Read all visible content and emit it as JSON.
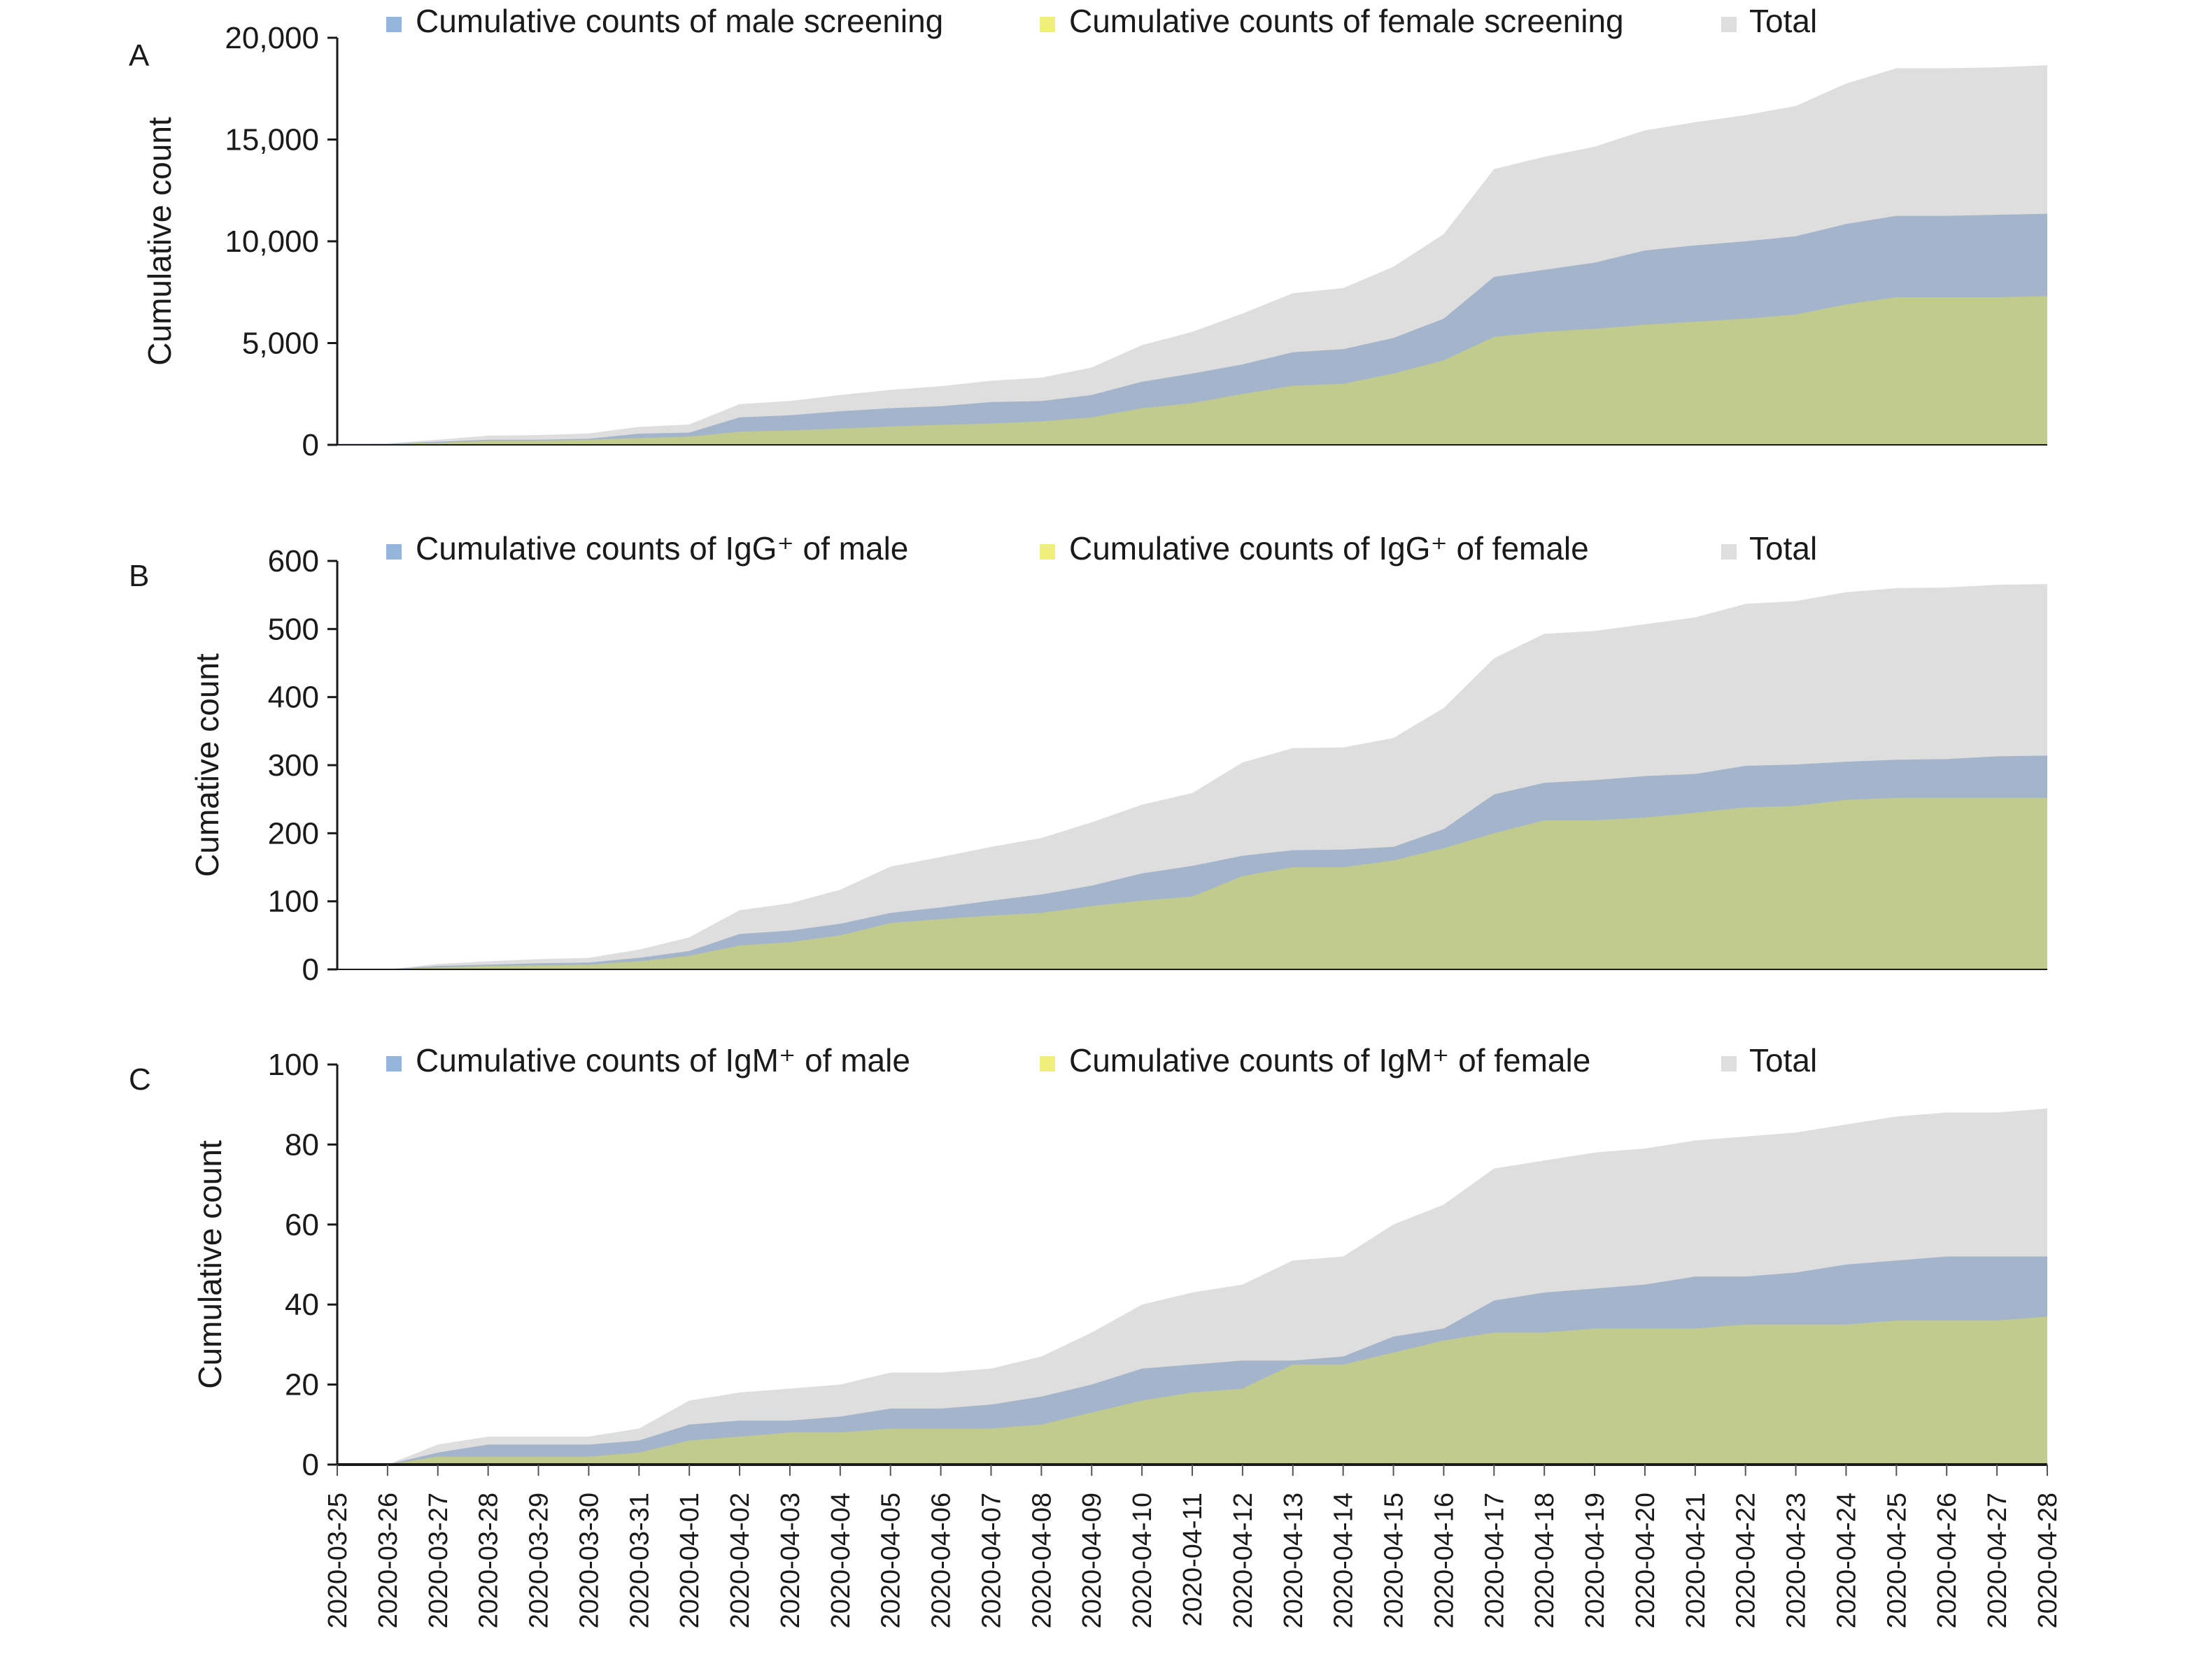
{
  "chart_data": [
    {
      "panel": "A",
      "type": "area",
      "title": "",
      "xlabel": "",
      "ylabel": "Cumulative count",
      "ylim": [
        0,
        20000
      ],
      "yticks": [
        "0",
        "5,000",
        "10,000",
        "15,000",
        "20,000"
      ],
      "ytick_values": [
        0,
        5000,
        10000,
        15000,
        20000
      ],
      "legend_position": "top",
      "grid": false,
      "series": [
        {
          "name": "Total",
          "color": "#dedede",
          "values": [
            50,
            70,
            250,
            450,
            480,
            560,
            880,
            1000,
            2000,
            2150,
            2450,
            2700,
            2880,
            3150,
            3300,
            3800,
            4900,
            5550,
            6450,
            7450,
            7700,
            8750,
            10350,
            13550,
            14150,
            14650,
            15450,
            15850,
            16200,
            16650,
            17750,
            18500,
            18500,
            18550,
            18650
          ]
        },
        {
          "name": "Cumulative counts of male screening",
          "color": "#a4b5cb",
          "legend_color": "#95b6dc",
          "values": [
            50,
            50,
            150,
            250,
            250,
            300,
            550,
            600,
            1350,
            1450,
            1650,
            1800,
            1900,
            2100,
            2150,
            2450,
            3100,
            3500,
            3950,
            4550,
            4700,
            5250,
            6200,
            8250,
            8600,
            8950,
            9550,
            9800,
            10000,
            10250,
            10850,
            11250,
            11250,
            11300,
            11350
          ]
        },
        {
          "name": "Cumulative counts of female screening",
          "color": "#c2cb8e",
          "legend_color": "#eef07a",
          "values": [
            0,
            20,
            100,
            200,
            200,
            250,
            330,
            400,
            650,
            700,
            800,
            900,
            980,
            1050,
            1150,
            1350,
            1800,
            2050,
            2500,
            2900,
            3000,
            3500,
            4150,
            5300,
            5550,
            5700,
            5900,
            6050,
            6200,
            6400,
            6900,
            7250,
            7250,
            7250,
            7300
          ]
        }
      ]
    },
    {
      "panel": "B",
      "type": "area",
      "title": "",
      "xlabel": "",
      "ylabel": "Cumative count",
      "ylim": [
        0,
        600
      ],
      "yticks": [
        "0",
        "100",
        "200",
        "300",
        "400",
        "500",
        "600"
      ],
      "ytick_values": [
        0,
        100,
        200,
        300,
        400,
        500,
        600
      ],
      "legend_position": "top",
      "grid": false,
      "series": [
        {
          "name": "Total",
          "color": "#dedede",
          "values": [
            0,
            0,
            8,
            12,
            15,
            17,
            29,
            47,
            87,
            97,
            117,
            151,
            165,
            180,
            193,
            216,
            242,
            259,
            304,
            325,
            326,
            340,
            384,
            457,
            493,
            497,
            507,
            517,
            537,
            541,
            554,
            560,
            561,
            565,
            566
          ]
        },
        {
          "name": "Cumulative counts of IgG⁺ of male",
          "color": "#a4b5cb",
          "legend_color": "#95b6dc",
          "values": [
            0,
            0,
            5,
            7,
            9,
            10,
            17,
            27,
            52,
            57,
            67,
            83,
            91,
            101,
            110,
            123,
            141,
            152,
            167,
            175,
            176,
            180,
            206,
            257,
            274,
            278,
            284,
            287,
            299,
            301,
            305,
            308,
            309,
            313,
            314
          ]
        },
        {
          "name": "Cumulative counts of IgG⁺ of female",
          "color": "#c2cb8e",
          "legend_color": "#eef07a",
          "values": [
            0,
            0,
            3,
            5,
            6,
            7,
            12,
            20,
            35,
            40,
            50,
            68,
            74,
            79,
            83,
            93,
            101,
            107,
            137,
            150,
            150,
            160,
            178,
            200,
            219,
            219,
            223,
            230,
            238,
            240,
            249,
            252,
            252,
            252,
            252
          ]
        }
      ]
    },
    {
      "panel": "C",
      "type": "area",
      "title": "",
      "xlabel": "",
      "ylabel": "Cumulative count",
      "ylim": [
        0,
        100
      ],
      "yticks": [
        "0",
        "20",
        "40",
        "60",
        "80",
        "100"
      ],
      "ytick_values": [
        0,
        20,
        40,
        60,
        80,
        100
      ],
      "legend_position": "top",
      "grid": false,
      "series": [
        {
          "name": "Total",
          "color": "#dedede",
          "values": [
            0,
            0,
            5,
            7,
            7,
            7,
            9,
            16,
            18,
            19,
            20,
            23,
            23,
            24,
            27,
            33,
            40,
            43,
            45,
            51,
            52,
            60,
            65,
            74,
            76,
            78,
            79,
            81,
            82,
            83,
            85,
            87,
            88,
            88,
            89
          ]
        },
        {
          "name": "Cumulative counts of IgM⁺ of male",
          "color": "#a4b5cb",
          "legend_color": "#95b6dc",
          "values": [
            0,
            0,
            3,
            5,
            5,
            5,
            6,
            10,
            11,
            11,
            12,
            14,
            14,
            15,
            17,
            20,
            24,
            25,
            26,
            26,
            27,
            32,
            34,
            41,
            43,
            44,
            45,
            47,
            47,
            48,
            50,
            51,
            52,
            52,
            52
          ]
        },
        {
          "name": "Cumulative counts of IgM⁺ of female",
          "color": "#c2cb8e",
          "legend_color": "#eef07a",
          "values": [
            0,
            0,
            2,
            2,
            2,
            2,
            3,
            6,
            7,
            8,
            8,
            9,
            9,
            9,
            10,
            13,
            16,
            18,
            19,
            25,
            25,
            28,
            31,
            33,
            33,
            34,
            34,
            34,
            35,
            35,
            35,
            36,
            36,
            36,
            37
          ]
        }
      ]
    }
  ],
  "x_categories": [
    "2020-03-25",
    "2020-03-26",
    "2020-03-27",
    "2020-03-28",
    "2020-03-29",
    "2020-03-30",
    "2020-03-31",
    "2020-04-01",
    "2020-04-02",
    "2020-04-03",
    "2020-04-04",
    "2020-04-05",
    "2020-04-06",
    "2020-04-07",
    "2020-04-08",
    "2020-04-09",
    "2020-04-10",
    "2020-04-11",
    "2020-04-12",
    "2020-04-13",
    "2020-04-14",
    "2020-04-15",
    "2020-04-16",
    "2020-04-17",
    "2020-04-18",
    "2020-04-19",
    "2020-04-20",
    "2020-04-21",
    "2020-04-22",
    "2020-04-23",
    "2020-04-24",
    "2020-04-25",
    "2020-04-26",
    "2020-04-27",
    "2020-04-28"
  ],
  "legend_order": [
    1,
    2,
    0
  ],
  "axis_color": "#1a1a1a"
}
